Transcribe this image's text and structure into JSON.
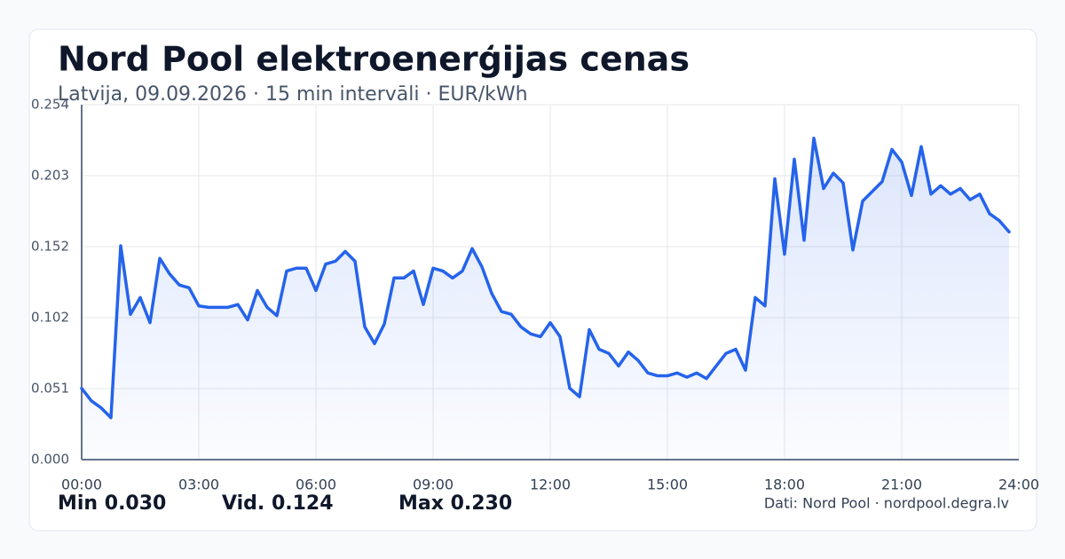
{
  "chart_data": {
    "type": "line",
    "title": "Nord Pool elektroenerģijas cenas",
    "subtitle": "Latvija, 09.09.2026 · 15 min intervāli · EUR/kWh",
    "x": [
      0,
      0.25,
      0.5,
      0.75,
      1,
      1.25,
      1.5,
      1.75,
      2,
      2.25,
      2.5,
      2.75,
      3,
      3.25,
      3.5,
      3.75,
      4,
      4.25,
      4.5,
      4.75,
      5,
      5.25,
      5.5,
      5.75,
      6,
      6.25,
      6.5,
      6.75,
      7,
      7.25,
      7.5,
      7.75,
      8,
      8.25,
      8.5,
      8.75,
      9,
      9.25,
      9.5,
      9.75,
      10,
      10.25,
      10.5,
      10.75,
      11,
      11.25,
      11.5,
      11.75,
      12,
      12.25,
      12.5,
      12.75,
      13,
      13.25,
      13.5,
      13.75,
      14,
      14.25,
      14.5,
      14.75,
      15,
      15.25,
      15.5,
      15.75,
      16,
      16.25,
      16.5,
      16.75,
      17,
      17.25,
      17.5,
      17.75,
      18,
      18.25,
      18.5,
      18.75,
      19,
      19.25,
      19.5,
      19.75,
      20,
      20.25,
      20.5,
      20.75,
      21,
      21.25,
      21.5,
      21.75,
      22,
      22.25,
      22.5,
      22.75,
      23,
      23.25,
      23.5,
      23.75
    ],
    "series": [
      {
        "color": "#2563eb",
        "values": [
          0.051,
          0.042,
          0.037,
          0.03,
          0.153,
          0.104,
          0.116,
          0.098,
          0.144,
          0.133,
          0.125,
          0.123,
          0.11,
          0.109,
          0.109,
          0.109,
          0.111,
          0.1,
          0.121,
          0.109,
          0.103,
          0.135,
          0.137,
          0.137,
          0.121,
          0.14,
          0.142,
          0.149,
          0.142,
          0.095,
          0.083,
          0.097,
          0.13,
          0.13,
          0.135,
          0.111,
          0.137,
          0.135,
          0.13,
          0.135,
          0.151,
          0.138,
          0.119,
          0.106,
          0.104,
          0.095,
          0.09,
          0.088,
          0.098,
          0.088,
          0.051,
          0.045,
          0.093,
          0.079,
          0.076,
          0.067,
          0.077,
          0.071,
          0.062,
          0.06,
          0.06,
          0.062,
          0.059,
          0.062,
          0.058,
          0.067,
          0.076,
          0.079,
          0.064,
          0.116,
          0.11,
          0.201,
          0.147,
          0.215,
          0.157,
          0.23,
          0.194,
          0.205,
          0.198,
          0.15,
          0.185,
          0.192,
          0.199,
          0.222,
          0.213,
          0.189,
          0.224,
          0.19,
          0.196,
          0.19,
          0.194,
          0.186,
          0.19,
          0.176,
          0.171,
          0.163
        ]
      }
    ],
    "xlim": [
      0,
      24
    ],
    "xticks": [
      {
        "value": 0,
        "label": "00:00"
      },
      {
        "value": 3,
        "label": "03:00"
      },
      {
        "value": 6,
        "label": "06:00"
      },
      {
        "value": 9,
        "label": "09:00"
      },
      {
        "value": 12,
        "label": "12:00"
      },
      {
        "value": 15,
        "label": "15:00"
      },
      {
        "value": 18,
        "label": "18:00"
      },
      {
        "value": 21,
        "label": "21:00"
      },
      {
        "value": 24,
        "label": "24:00"
      }
    ],
    "ylim": [
      0,
      0.254
    ],
    "yticks": [
      {
        "value": 0,
        "label": "0.000"
      },
      {
        "value": 0.0508,
        "label": "0.051"
      },
      {
        "value": 0.1016,
        "label": "0.102"
      },
      {
        "value": 0.1524,
        "label": "0.152"
      },
      {
        "value": 0.2032,
        "label": "0.203"
      },
      {
        "value": 0.254,
        "label": "0.254"
      }
    ],
    "grid": true,
    "stats": [
      "Min 0.030",
      "Vid. 0.124",
      "Max 0.230"
    ],
    "source": "Dati: Nord Pool · nordpool.degra.lv"
  }
}
